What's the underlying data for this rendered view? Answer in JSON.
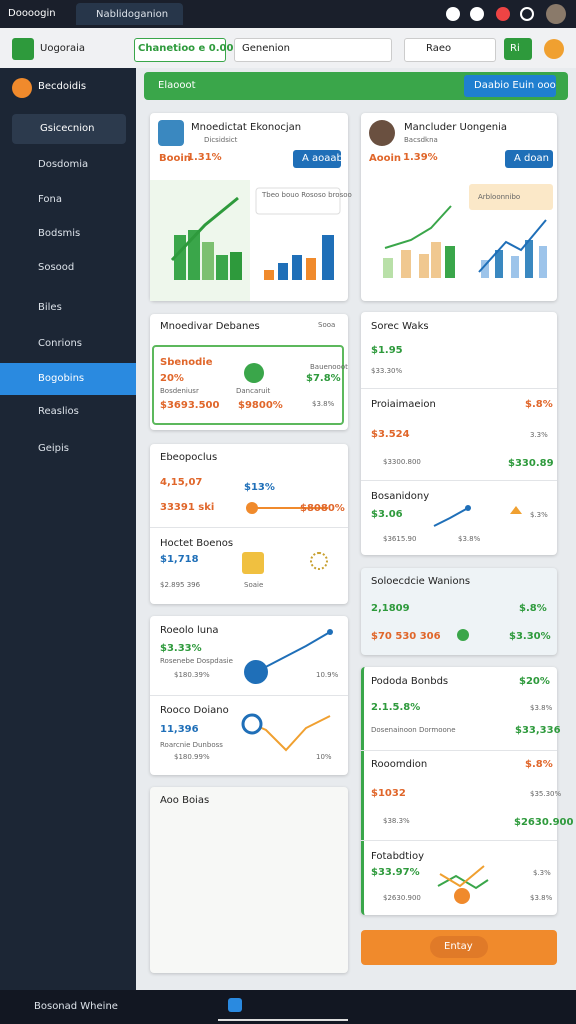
{
  "topbar": {
    "app": "Doooogin",
    "tab": "Nablidoganion"
  },
  "toolbar": {
    "brand": "Uogoraia",
    "field": "Chanetioo e 0.00",
    "search": "Genenion",
    "button": "Raeo",
    "go": "Ri"
  },
  "sidebar": {
    "header": "Becdoidis",
    "items": [
      "Gsicecnion",
      "Dosdomia",
      "Fona",
      "Bodsmis",
      "Sosood",
      "Biles",
      "Conrions",
      "Bogobins",
      "Reaslios",
      "Geipis"
    ]
  },
  "banner": {
    "title": "Elaooot",
    "button": "Daabio Euin ooo"
  },
  "card1": {
    "title": "Mnoedictat Ekonocjan",
    "sub": "Dicsidsict",
    "label": "Booin",
    "value": "1.31%",
    "button": "A aoaab",
    "caption": "Tbeo bouo Rososo brosoo"
  },
  "card2": {
    "title": "Mancluder Uongenia",
    "sub": "Bacsdkna",
    "label": "Aooin",
    "value": "1.39%",
    "button": "A doan",
    "caption": "Arbloonnibo"
  },
  "card3": {
    "title": "Mnoedivar Debanes",
    "side": "Sooa",
    "name": "Sbenodie",
    "pct": "20%",
    "right": "$7.8%",
    "left_sub": "Bosdeniusr",
    "mid_sub": "Dancaruit",
    "right_sub": "Bauenooot",
    "a": "$3693.500",
    "b": "$9800%",
    "c": "$3.8%"
  },
  "card4": {
    "title": "Ebeopoclus",
    "value": "4,15,07",
    "tag": "$13%",
    "sub": "33391 ski",
    "right": "$8080%",
    "title2": "Hoctet Boenos",
    "value2": "$1,718",
    "sub2": "$2.895 396",
    "side2": "Soaie"
  },
  "card5": {
    "title": "Roeolo luna",
    "value": "$3.33%",
    "sub": "Rosenebe Dospdasie",
    "a": "$180.39%",
    "b": "10.9%",
    "title2": "Rooco Doiano",
    "value2": "11,396",
    "sub2": "Roarcnie Dunboss",
    "c": "$180.99%",
    "d": "10%"
  },
  "card6": {
    "title": "Aoo Boias"
  },
  "right1": {
    "title": "Sorec Waks",
    "value": "$1.95",
    "sub": "$33.30%",
    "title2": "Proiaimaeion",
    "pct2": "$.8%",
    "value2": "$3.524",
    "side2": "3.3%",
    "a": "$3300.800",
    "b": "$330.89",
    "title3": "Bosanidony",
    "value3": "$3.06",
    "side3": "$.3%",
    "c": "$3615.90",
    "d": "$3.8%"
  },
  "right2": {
    "title": "Soloecdcie Wanions",
    "value": "2,1809",
    "pct": "$.8%",
    "sub": "$70 530 306",
    "right": "$3.30%"
  },
  "right3": {
    "title": "Pododa Bonbds",
    "pct": "$20%",
    "value": "2.1.5.8%",
    "side": "$3.8%",
    "sub": "Dosenainoon Dormoone",
    "right": "$33,336",
    "title2": "Rooomdion",
    "pct2": "$.8%",
    "value2": "$1032",
    "side2": "$35.30%",
    "a": "$38.3%",
    "title3": "Fotabdtioy",
    "value3": "$33.97%",
    "side3": "$.3%",
    "b": "$2630.900",
    "c": "$3.8%"
  },
  "action": {
    "button": "Entay"
  },
  "taskbar": {
    "label": "Bosonad Wheine"
  }
}
